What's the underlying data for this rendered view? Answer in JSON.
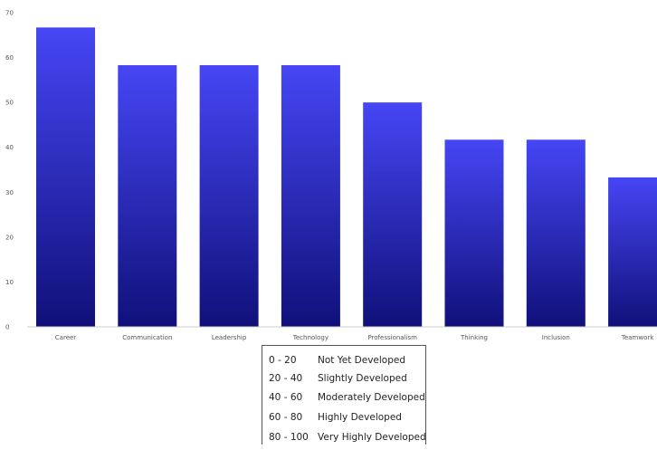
{
  "chart_data": {
    "type": "bar",
    "categories": [
      "Career",
      "Communication",
      "Leadership",
      "Technology",
      "Professionalism",
      "Thinking",
      "Inclusion",
      "Teamwork"
    ],
    "values": [
      66.7,
      58.3,
      58.3,
      58.3,
      50,
      41.7,
      41.7,
      33.3
    ],
    "title": "",
    "xlabel": "",
    "ylabel": "",
    "ylim": [
      0,
      70
    ],
    "yticks": [
      "0",
      "10",
      "20",
      "30",
      "40",
      "50",
      "60",
      "70"
    ],
    "grid": false,
    "colors": {
      "bar_top": "#4646f5",
      "bar_bottom": "#10107a",
      "axis": "#bbbbbb"
    }
  },
  "legend": {
    "rows": [
      {
        "range": "0 - 20",
        "label": "Not Yet Developed"
      },
      {
        "range": "20 - 40",
        "label": "Slightly Developed"
      },
      {
        "range": "40 - 60",
        "label": "Moderately Developed"
      },
      {
        "range": "60 - 80",
        "label": "Highly Developed"
      },
      {
        "range": "80 - 100",
        "label": "Very Highly Developed"
      }
    ]
  }
}
